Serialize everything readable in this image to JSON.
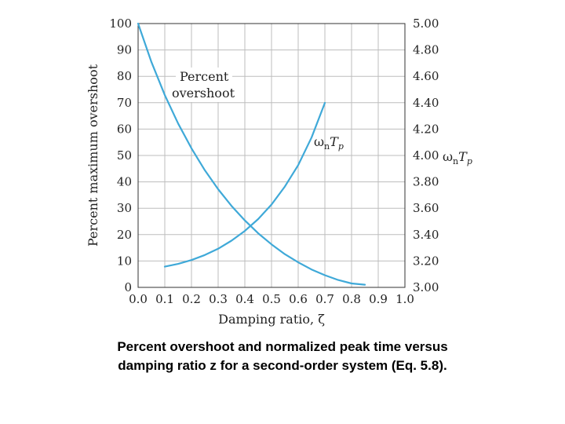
{
  "chart_data": {
    "type": "line",
    "xlabel": "Damping ratio, ζ",
    "ylabel_left": "Percent maximum overshoot",
    "ylabel_right_parts": [
      "ω",
      "n",
      "T",
      "p"
    ],
    "xlim": [
      0,
      1
    ],
    "ylim_left": [
      0,
      100
    ],
    "ylim_right": [
      3.0,
      5.0
    ],
    "x_ticks": [
      "0.0",
      "0.1",
      "0.2",
      "0.3",
      "0.4",
      "0.5",
      "0.6",
      "0.7",
      "0.8",
      "0.9",
      "1.0"
    ],
    "y_ticks_left": [
      "0",
      "10",
      "20",
      "30",
      "40",
      "50",
      "60",
      "70",
      "80",
      "90",
      "100"
    ],
    "y_ticks_right": [
      "3.00",
      "3.20",
      "3.40",
      "3.60",
      "3.80",
      "4.00",
      "4.20",
      "4.40",
      "4.60",
      "4.80",
      "5.00"
    ],
    "grid": true,
    "series": [
      {
        "name": "Percent overshoot",
        "axis": "left",
        "color": "#3fa9d8",
        "x": [
          0.0,
          0.05,
          0.1,
          0.15,
          0.2,
          0.25,
          0.3,
          0.35,
          0.4,
          0.45,
          0.5,
          0.55,
          0.6,
          0.65,
          0.7,
          0.75,
          0.8,
          0.85
        ],
        "y": [
          100,
          85.4,
          72.9,
          62.1,
          52.7,
          44.4,
          37.2,
          30.9,
          25.4,
          20.5,
          16.3,
          12.6,
          9.5,
          6.8,
          4.6,
          2.8,
          1.5,
          1.0
        ]
      },
      {
        "name": "ωnTp",
        "axis": "right",
        "color": "#3fa9d8",
        "x": [
          0.1,
          0.15,
          0.2,
          0.25,
          0.3,
          0.35,
          0.4,
          0.45,
          0.5,
          0.55,
          0.6,
          0.65,
          0.7
        ],
        "y": [
          3.157,
          3.178,
          3.207,
          3.245,
          3.293,
          3.354,
          3.428,
          3.518,
          3.628,
          3.764,
          3.927,
          4.136,
          4.399
        ]
      }
    ],
    "annotations": {
      "overshoot_line1": "Percent",
      "overshoot_line2": "overshoot",
      "tp_parts": [
        "ω",
        "n",
        "T",
        "p"
      ]
    }
  },
  "caption": {
    "line1": "Percent overshoot and normalized peak time versus",
    "line2": "damping ratio z for a second-order system (Eq. 5.8)."
  }
}
